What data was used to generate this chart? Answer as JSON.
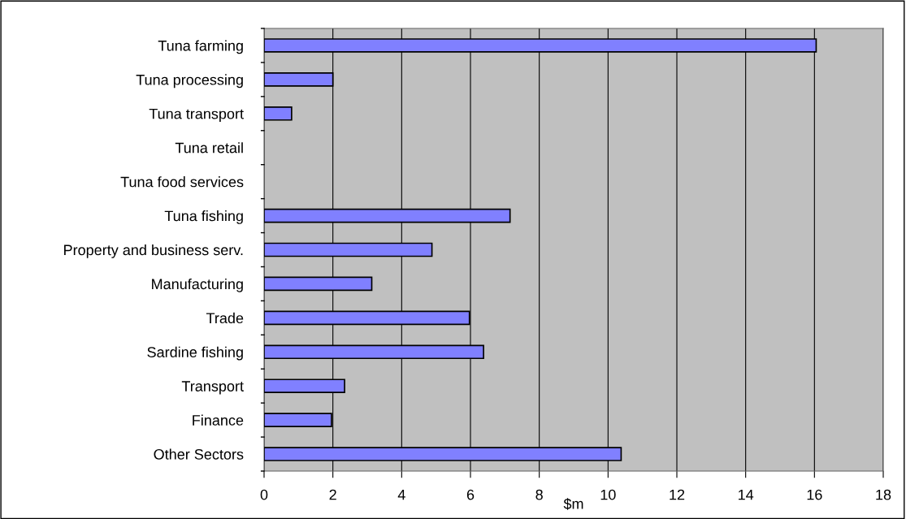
{
  "chart_data": {
    "type": "bar",
    "orientation": "horizontal",
    "xlabel": "$m",
    "categories": [
      "Tuna farming",
      "Tuna processing",
      "Tuna transport",
      "Tuna retail",
      "Tuna food services",
      "Tuna fishing",
      "Property and business serv.",
      "Manufacturing",
      "Trade",
      "Sardine fishing",
      "Transport",
      "Finance",
      "Other Sectors"
    ],
    "values": [
      16.05,
      2.0,
      0.8,
      0,
      0,
      7.15,
      4.88,
      3.13,
      5.97,
      6.38,
      2.34,
      1.96,
      10.38
    ],
    "color": "#8080ff",
    "xlim": [
      0,
      18
    ],
    "xticks": [
      0,
      2,
      4,
      6,
      8,
      10,
      12,
      14,
      16,
      18
    ],
    "grid": "x",
    "legend": false
  }
}
